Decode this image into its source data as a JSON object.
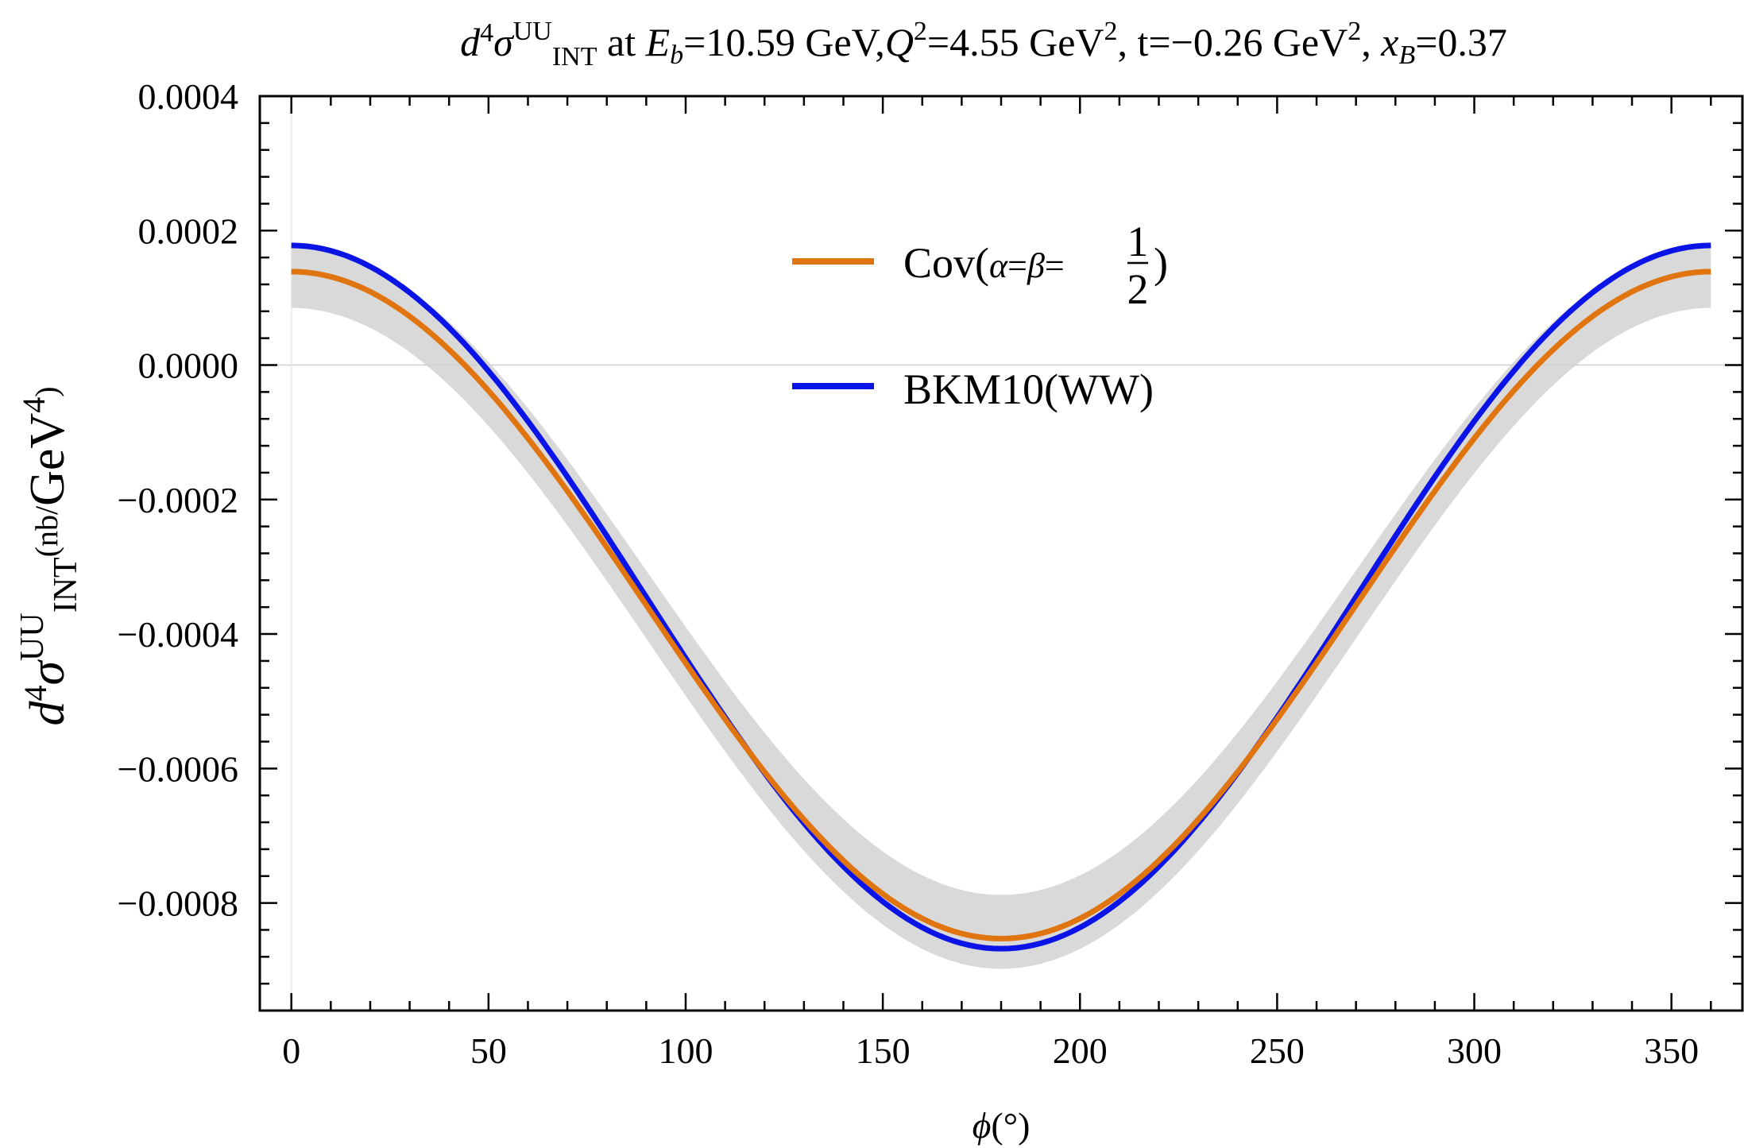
{
  "chart_data": {
    "type": "line",
    "title": {
      "prefix": "d",
      "order": "4",
      "sigma": "σ",
      "sup": "UU",
      "sub": "INT",
      "at": " at ",
      "eb_var": "E",
      "eb_sub": "b",
      "eb_val": "=10.59 GeV,",
      "q_var": "Q",
      "q_sup": "2",
      "q_val": "=4.55 GeV",
      "q_unit_sup": "2",
      "t_part": ", t=−0.26 GeV",
      "t_unit_sup": "2",
      "comma": ", ",
      "x_var": "x",
      "x_sub": "B",
      "x_val": "=0.37"
    },
    "xlabel": {
      "var": "ϕ",
      "unit": "(°)"
    },
    "ylabel": {
      "d": "d",
      "order": "4",
      "sigma": "σ",
      "sup": "UU",
      "sub": "INT",
      "unit_small": "(nb/",
      "unit_big": "GeV",
      "unit_sup": "4",
      "close": ")"
    },
    "xlim": [
      -8,
      368
    ],
    "ylim": [
      -0.00096,
      0.0004
    ],
    "x_ticks": [
      0,
      50,
      100,
      150,
      200,
      250,
      300,
      350
    ],
    "x_tick_labels": [
      "0",
      "50",
      "100",
      "150",
      "200",
      "250",
      "300",
      "350"
    ],
    "y_ticks": [
      0.0004,
      0.0002,
      0.0,
      -0.0002,
      -0.0004,
      -0.0006,
      -0.0008
    ],
    "y_tick_labels": [
      "0.0004",
      "0.0002",
      "0.0000",
      "−0.0002",
      "−0.0004",
      "−0.0006",
      "−0.0008"
    ],
    "series": [
      {
        "name": "Cov",
        "label_prefix": "Cov(",
        "label_alpha": "α",
        "label_eq1": "=",
        "label_beta": "β",
        "label_eq2": "=",
        "label_num": "1",
        "label_den": "2",
        "label_close": ")",
        "color": "#e07510",
        "model": {
          "offset": -0.000357,
          "amplitude": 0.000496
        },
        "band": {
          "upper_end": 0.000177,
          "upper_min": -0.000788,
          "lower_end": 8.5e-05,
          "lower_min": -0.000898
        }
      },
      {
        "name": "BKM10(WW)",
        "label": "BKM10(WW)",
        "color": "#0a14e6",
        "model": {
          "offset": -0.000345,
          "amplitude": 0.000523
        }
      }
    ],
    "band_color": "#d9d9d9"
  }
}
